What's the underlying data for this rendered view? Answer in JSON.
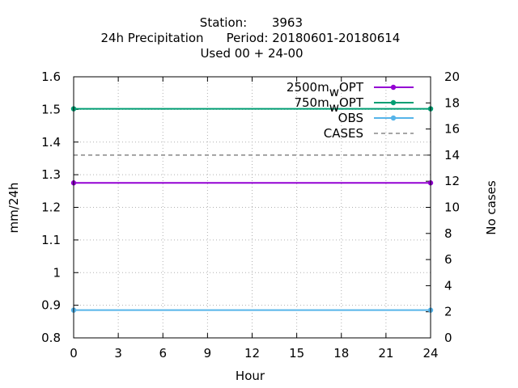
{
  "chart_data": {
    "type": "line",
    "title": {
      "line1_label": "Station:",
      "line1_value": "3963",
      "line2_label": "24h Precipitation",
      "line2_period": "Period: 20180601-20180614",
      "line3": "Used  00 + 24-00"
    },
    "xlabel": "Hour",
    "ylabel": "mm/24h",
    "y2label": "No cases",
    "xlim": [
      0,
      24
    ],
    "ylim": [
      0.8,
      1.6
    ],
    "y2lim": [
      0,
      20
    ],
    "x_ticks": [
      "0",
      "3",
      "6",
      "9",
      "12",
      "15",
      "18",
      "21",
      "24"
    ],
    "y_ticks": [
      "0.8",
      "0.9",
      "1",
      "1.1",
      "1.2",
      "1.3",
      "1.4",
      "1.5",
      "1.6"
    ],
    "y2_ticks": [
      "0",
      "2",
      "4",
      "6",
      "8",
      "10",
      "12",
      "14",
      "16",
      "18",
      "20"
    ],
    "grid": true,
    "legend_position": "top-right",
    "series": [
      {
        "name_main": "2500m",
        "name_sub": "w",
        "name_tail": "OPT",
        "axis": "y",
        "color": "#9400d3",
        "x": [
          0,
          24
        ],
        "y": [
          1.275,
          1.275
        ]
      },
      {
        "name_main": "750m",
        "name_sub": "w",
        "name_tail": "OPT",
        "axis": "y",
        "color": "#009e73",
        "x": [
          0,
          24
        ],
        "y": [
          1.502,
          1.502
        ]
      },
      {
        "name_main": "OBS",
        "axis": "y",
        "color": "#56b4e9",
        "x": [
          0,
          24
        ],
        "y": [
          0.885,
          0.885
        ]
      },
      {
        "name_main": "CASES",
        "axis": "y2",
        "color": "#888888",
        "dashed": true,
        "x": [
          0,
          24
        ],
        "y": [
          14,
          14
        ]
      }
    ]
  }
}
